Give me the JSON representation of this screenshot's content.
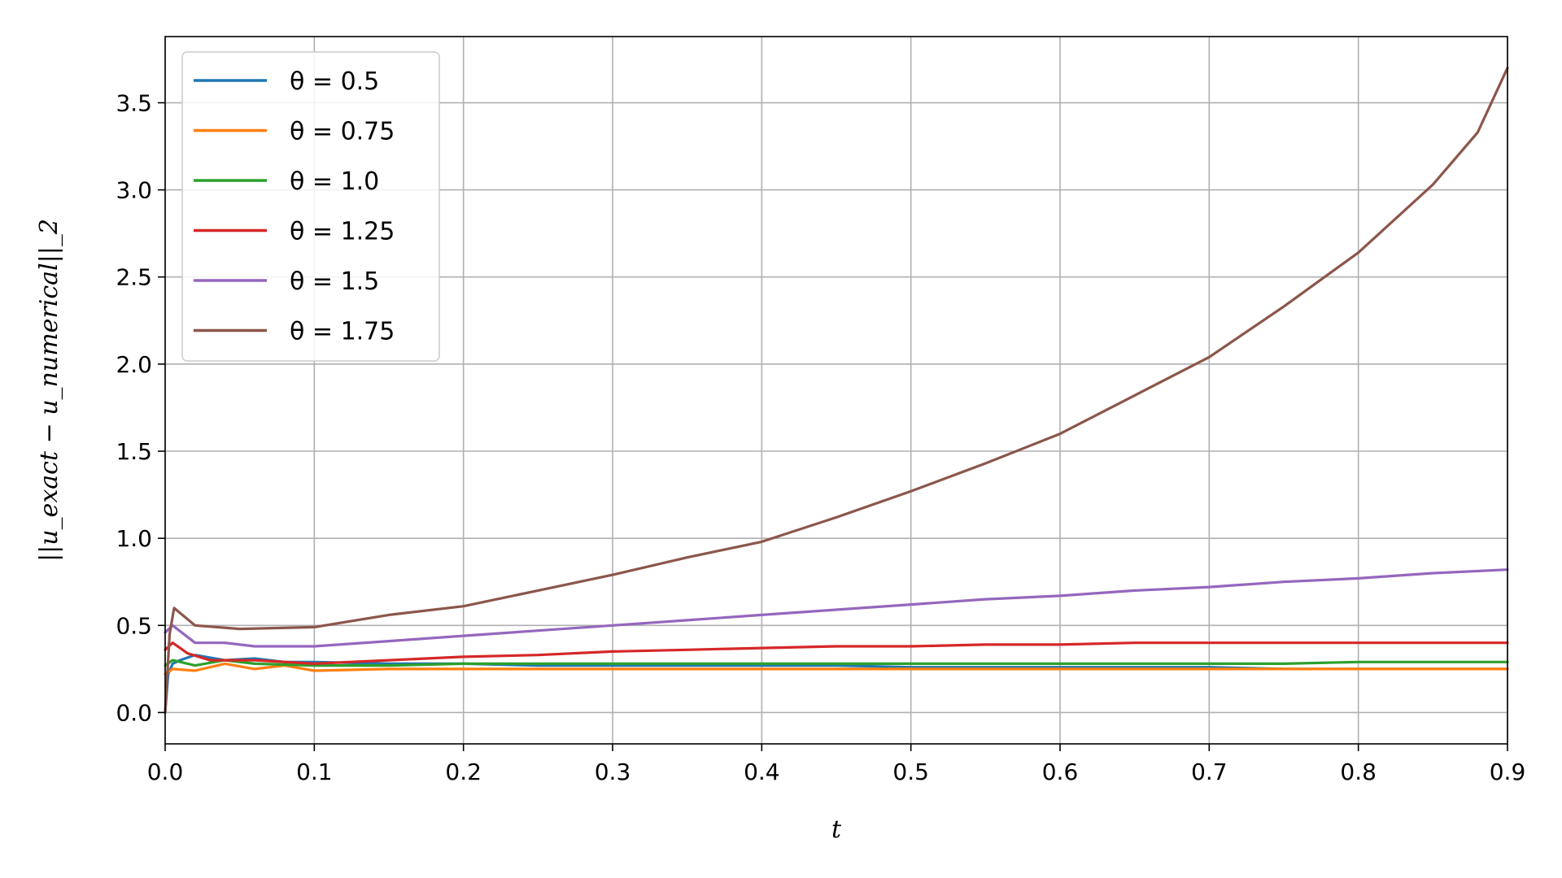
{
  "chart_data": {
    "type": "line",
    "xlabel": "t",
    "ylabel": "||u_exact − u_numerical||_2",
    "xlim": [
      0.0,
      0.9
    ],
    "ylim": [
      -0.18,
      3.88
    ],
    "x_ticks": [
      "0.0",
      "0.1",
      "0.2",
      "0.3",
      "0.4",
      "0.5",
      "0.6",
      "0.7",
      "0.8",
      "0.9"
    ],
    "y_ticks": [
      "0.0",
      "0.5",
      "1.0",
      "1.5",
      "2.0",
      "2.5",
      "3.0",
      "3.5"
    ],
    "grid": true,
    "legend_position": "top-left",
    "series": [
      {
        "name": "θ = 0.5",
        "color": "#1f77b4",
        "points": [
          [
            0,
            0.0
          ],
          [
            0.002,
            0.22
          ],
          [
            0.005,
            0.28
          ],
          [
            0.01,
            0.3
          ],
          [
            0.02,
            0.33
          ],
          [
            0.04,
            0.3
          ],
          [
            0.06,
            0.31
          ],
          [
            0.08,
            0.29
          ],
          [
            0.1,
            0.29
          ],
          [
            0.15,
            0.28
          ],
          [
            0.2,
            0.28
          ],
          [
            0.25,
            0.27
          ],
          [
            0.3,
            0.27
          ],
          [
            0.35,
            0.27
          ],
          [
            0.4,
            0.27
          ],
          [
            0.45,
            0.27
          ],
          [
            0.5,
            0.26
          ],
          [
            0.55,
            0.26
          ],
          [
            0.6,
            0.26
          ],
          [
            0.65,
            0.26
          ],
          [
            0.7,
            0.26
          ],
          [
            0.75,
            0.25
          ],
          [
            0.8,
            0.25
          ],
          [
            0.85,
            0.25
          ],
          [
            0.9,
            0.25
          ]
        ]
      },
      {
        "name": "θ = 0.75",
        "color": "#ff7f0e",
        "points": [
          [
            0,
            0.22
          ],
          [
            0.005,
            0.25
          ],
          [
            0.02,
            0.24
          ],
          [
            0.04,
            0.28
          ],
          [
            0.06,
            0.25
          ],
          [
            0.08,
            0.27
          ],
          [
            0.1,
            0.24
          ],
          [
            0.15,
            0.25
          ],
          [
            0.2,
            0.25
          ],
          [
            0.25,
            0.25
          ],
          [
            0.3,
            0.25
          ],
          [
            0.35,
            0.25
          ],
          [
            0.4,
            0.25
          ],
          [
            0.45,
            0.25
          ],
          [
            0.5,
            0.25
          ],
          [
            0.55,
            0.25
          ],
          [
            0.6,
            0.25
          ],
          [
            0.65,
            0.25
          ],
          [
            0.7,
            0.25
          ],
          [
            0.75,
            0.25
          ],
          [
            0.8,
            0.25
          ],
          [
            0.85,
            0.25
          ],
          [
            0.9,
            0.25
          ]
        ]
      },
      {
        "name": "θ = 1.0",
        "color": "#2ca02c",
        "points": [
          [
            0,
            0.27
          ],
          [
            0.005,
            0.3
          ],
          [
            0.02,
            0.27
          ],
          [
            0.04,
            0.3
          ],
          [
            0.06,
            0.28
          ],
          [
            0.1,
            0.27
          ],
          [
            0.15,
            0.27
          ],
          [
            0.2,
            0.28
          ],
          [
            0.25,
            0.28
          ],
          [
            0.3,
            0.28
          ],
          [
            0.35,
            0.28
          ],
          [
            0.4,
            0.28
          ],
          [
            0.45,
            0.28
          ],
          [
            0.5,
            0.28
          ],
          [
            0.55,
            0.28
          ],
          [
            0.6,
            0.28
          ],
          [
            0.65,
            0.28
          ],
          [
            0.7,
            0.28
          ],
          [
            0.75,
            0.28
          ],
          [
            0.8,
            0.29
          ],
          [
            0.85,
            0.29
          ],
          [
            0.9,
            0.29
          ]
        ]
      },
      {
        "name": "θ = 1.25",
        "color": "#d62728",
        "points": [
          [
            0,
            0.36
          ],
          [
            0.005,
            0.4
          ],
          [
            0.015,
            0.34
          ],
          [
            0.03,
            0.3
          ],
          [
            0.06,
            0.3
          ],
          [
            0.1,
            0.28
          ],
          [
            0.15,
            0.3
          ],
          [
            0.2,
            0.32
          ],
          [
            0.25,
            0.33
          ],
          [
            0.3,
            0.35
          ],
          [
            0.35,
            0.36
          ],
          [
            0.4,
            0.37
          ],
          [
            0.45,
            0.38
          ],
          [
            0.5,
            0.38
          ],
          [
            0.55,
            0.39
          ],
          [
            0.6,
            0.39
          ],
          [
            0.65,
            0.4
          ],
          [
            0.7,
            0.4
          ],
          [
            0.75,
            0.4
          ],
          [
            0.8,
            0.4
          ],
          [
            0.85,
            0.4
          ],
          [
            0.9,
            0.4
          ]
        ]
      },
      {
        "name": "θ = 1.5",
        "color": "#9467bd",
        "points": [
          [
            0,
            0.46
          ],
          [
            0.005,
            0.5
          ],
          [
            0.02,
            0.4
          ],
          [
            0.04,
            0.4
          ],
          [
            0.06,
            0.38
          ],
          [
            0.1,
            0.38
          ],
          [
            0.15,
            0.41
          ],
          [
            0.2,
            0.44
          ],
          [
            0.25,
            0.47
          ],
          [
            0.3,
            0.5
          ],
          [
            0.35,
            0.53
          ],
          [
            0.4,
            0.56
          ],
          [
            0.45,
            0.59
          ],
          [
            0.5,
            0.62
          ],
          [
            0.55,
            0.65
          ],
          [
            0.6,
            0.67
          ],
          [
            0.65,
            0.7
          ],
          [
            0.7,
            0.72
          ],
          [
            0.75,
            0.75
          ],
          [
            0.8,
            0.77
          ],
          [
            0.85,
            0.8
          ],
          [
            0.9,
            0.82
          ]
        ]
      },
      {
        "name": "θ = 1.75",
        "color": "#8c564b",
        "points": [
          [
            0,
            0.0
          ],
          [
            0.003,
            0.45
          ],
          [
            0.006,
            0.6
          ],
          [
            0.02,
            0.5
          ],
          [
            0.05,
            0.48
          ],
          [
            0.1,
            0.49
          ],
          [
            0.15,
            0.56
          ],
          [
            0.2,
            0.61
          ],
          [
            0.25,
            0.7
          ],
          [
            0.3,
            0.79
          ],
          [
            0.35,
            0.89
          ],
          [
            0.4,
            0.98
          ],
          [
            0.45,
            1.12
          ],
          [
            0.5,
            1.27
          ],
          [
            0.55,
            1.43
          ],
          [
            0.6,
            1.6
          ],
          [
            0.65,
            1.82
          ],
          [
            0.7,
            2.04
          ],
          [
            0.75,
            2.33
          ],
          [
            0.8,
            2.64
          ],
          [
            0.85,
            3.03
          ],
          [
            0.88,
            3.33
          ],
          [
            0.9,
            3.7
          ]
        ]
      }
    ]
  }
}
